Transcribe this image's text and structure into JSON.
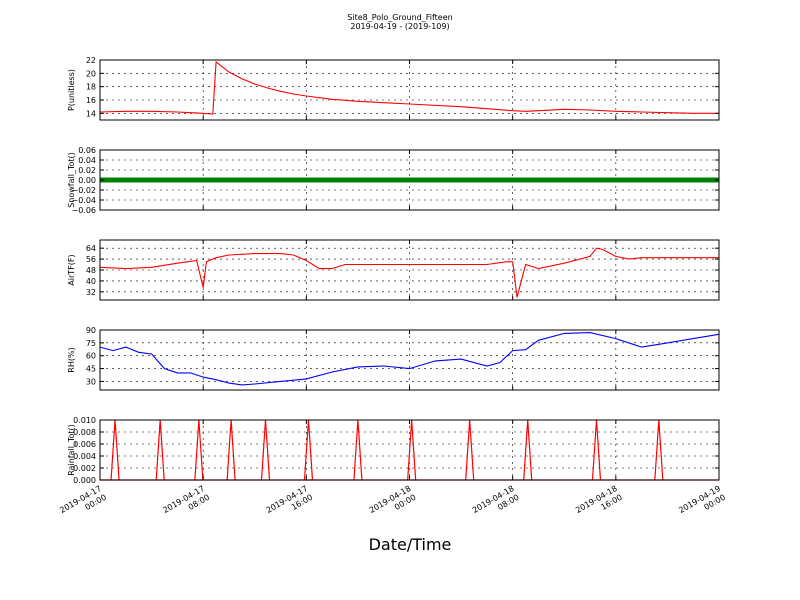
{
  "figure": {
    "title": "Site8_Polo_Ground_Fifteen",
    "subtitle": "2019-04-19 - (2019-109)",
    "xlabel": "Date/Time"
  },
  "chart_data": {
    "type": "line",
    "x_range": [
      "2019-04-17 00:00",
      "2019-04-19 00:00"
    ],
    "x_ticks": [
      "2019-04-17 00:00",
      "2019-04-17 08:00",
      "2019-04-17 16:00",
      "2019-04-18 00:00",
      "2019-04-18 08:00",
      "2019-04-18 16:00",
      "2019-04-19 00:00"
    ],
    "x_tick_labels": [
      [
        "2019-04-17",
        "00:00"
      ],
      [
        "2019-04-17",
        "08:00"
      ],
      [
        "2019-04-17",
        "16:00"
      ],
      [
        "2019-04-18",
        "00:00"
      ],
      [
        "2019-04-18",
        "08:00"
      ],
      [
        "2019-04-18",
        "16:00"
      ],
      [
        "2019-04-19",
        "00:00"
      ]
    ],
    "grid": true,
    "panels": [
      {
        "ylabel": "P(unitless)",
        "ylim": [
          13,
          22
        ],
        "yticks": [
          14,
          16,
          18,
          20,
          22
        ],
        "ytick_labels": [
          "14",
          "16",
          "18",
          "20",
          "22"
        ],
        "color": "#ff0000",
        "x": [
          "2019-04-17 00:00",
          "2019-04-17 02:00",
          "2019-04-17 04:00",
          "2019-04-17 06:00",
          "2019-04-17 07:00",
          "2019-04-17 08:00",
          "2019-04-17 08:45",
          "2019-04-17 09:00",
          "2019-04-17 10:00",
          "2019-04-17 11:00",
          "2019-04-17 12:00",
          "2019-04-17 13:00",
          "2019-04-17 14:00",
          "2019-04-17 15:00",
          "2019-04-17 16:00",
          "2019-04-17 18:00",
          "2019-04-17 20:00",
          "2019-04-17 22:00",
          "2019-04-18 00:00",
          "2019-04-18 04:00",
          "2019-04-18 06:00",
          "2019-04-18 08:00",
          "2019-04-18 09:00",
          "2019-04-18 10:00",
          "2019-04-18 12:00",
          "2019-04-18 14:00",
          "2019-04-18 16:00",
          "2019-04-18 18:00",
          "2019-04-18 20:00",
          "2019-04-18 22:00",
          "2019-04-19 00:00"
        ],
        "values": [
          14.2,
          14.3,
          14.3,
          14.2,
          14.1,
          14.0,
          13.9,
          21.7,
          20.2,
          19.2,
          18.4,
          17.8,
          17.3,
          16.9,
          16.6,
          16.1,
          15.8,
          15.6,
          15.4,
          15.0,
          14.7,
          14.4,
          14.3,
          14.4,
          14.6,
          14.5,
          14.3,
          14.2,
          14.1,
          14.0,
          14.0
        ]
      },
      {
        "ylabel": "Snowfall_Tot()",
        "ylim": [
          -0.06,
          0.06
        ],
        "yticks": [
          -0.06,
          -0.04,
          -0.02,
          0.0,
          0.02,
          0.04,
          0.06
        ],
        "ytick_labels": [
          "−0.06",
          "−0.04",
          "−0.02",
          "0.00",
          "0.02",
          "0.04",
          "0.06"
        ],
        "color": "#008000",
        "style": "markers",
        "x": [
          "2019-04-17 00:00",
          "2019-04-19 00:00"
        ],
        "values": [
          0.0,
          0.0
        ]
      },
      {
        "ylabel": "AirTF(F)",
        "ylim": [
          26,
          70
        ],
        "yticks": [
          32,
          40,
          48,
          56,
          64
        ],
        "ytick_labels": [
          "32",
          "40",
          "48",
          "56",
          "64"
        ],
        "color": "#ff0000",
        "x": [
          "2019-04-17 00:00",
          "2019-04-17 02:00",
          "2019-04-17 04:00",
          "2019-04-17 06:00",
          "2019-04-17 07:30",
          "2019-04-17 08:00",
          "2019-04-17 08:15",
          "2019-04-17 09:00",
          "2019-04-17 10:00",
          "2019-04-17 12:00",
          "2019-04-17 14:00",
          "2019-04-17 15:00",
          "2019-04-17 16:00",
          "2019-04-17 17:00",
          "2019-04-17 18:00",
          "2019-04-17 19:00",
          "2019-04-17 20:00",
          "2019-04-17 22:00",
          "2019-04-18 00:00",
          "2019-04-18 04:00",
          "2019-04-18 06:00",
          "2019-04-18 07:30",
          "2019-04-18 08:00",
          "2019-04-18 08:20",
          "2019-04-18 09:00",
          "2019-04-18 10:00",
          "2019-04-18 12:00",
          "2019-04-18 14:00",
          "2019-04-18 14:30",
          "2019-04-18 15:00",
          "2019-04-18 16:00",
          "2019-04-18 17:00",
          "2019-04-18 18:00",
          "2019-04-18 20:00",
          "2019-04-18 22:00",
          "2019-04-19 00:00"
        ],
        "values": [
          50,
          49,
          50,
          53,
          55,
          35,
          54,
          57,
          59,
          60,
          60,
          59,
          55,
          49,
          49,
          52,
          52,
          52,
          52,
          52,
          52,
          54,
          54,
          28,
          52,
          49,
          53,
          58,
          64,
          63,
          58,
          56,
          57,
          57,
          57,
          57
        ]
      },
      {
        "ylabel": "RH(%)",
        "ylim": [
          20,
          90
        ],
        "yticks": [
          30,
          45,
          60,
          75,
          90
        ],
        "ytick_labels": [
          "30",
          "45",
          "60",
          "75",
          "90"
        ],
        "color": "#0000ff",
        "x": [
          "2019-04-17 00:00",
          "2019-04-17 01:00",
          "2019-04-17 02:00",
          "2019-04-17 03:00",
          "2019-04-17 04:00",
          "2019-04-17 05:00",
          "2019-04-17 06:00",
          "2019-04-17 07:00",
          "2019-04-17 08:00",
          "2019-04-17 09:00",
          "2019-04-17 10:00",
          "2019-04-17 11:00",
          "2019-04-17 12:00",
          "2019-04-17 14:00",
          "2019-04-17 16:00",
          "2019-04-17 18:00",
          "2019-04-17 20:00",
          "2019-04-17 22:00",
          "2019-04-18 00:00",
          "2019-04-18 02:00",
          "2019-04-18 04:00",
          "2019-04-18 06:00",
          "2019-04-18 07:00",
          "2019-04-18 08:00",
          "2019-04-18 09:00",
          "2019-04-18 10:00",
          "2019-04-18 12:00",
          "2019-04-18 14:00",
          "2019-04-18 16:00",
          "2019-04-18 18:00",
          "2019-04-18 20:00",
          "2019-04-18 22:00",
          "2019-04-19 00:00"
        ],
        "values": [
          70,
          66,
          70,
          64,
          62,
          45,
          40,
          40,
          35,
          32,
          28,
          26,
          27,
          30,
          33,
          41,
          47,
          48,
          45,
          54,
          56,
          48,
          52,
          66,
          67,
          78,
          86,
          87,
          80,
          70,
          75,
          80,
          85
        ]
      },
      {
        "ylabel": "Rainfall_Tot()",
        "ylim": [
          0,
          0.01
        ],
        "yticks": [
          0.0,
          0.002,
          0.004,
          0.006,
          0.008,
          0.01
        ],
        "ytick_labels": [
          "0.000",
          "0.002",
          "0.004",
          "0.006",
          "0.008",
          "0.010"
        ],
        "color": "#ff0000",
        "x": [
          "2019-04-17 01:10",
          "2019-04-17 04:40",
          "2019-04-17 07:40",
          "2019-04-17 10:10",
          "2019-04-17 12:50",
          "2019-04-17 16:10",
          "2019-04-17 20:00",
          "2019-04-18 00:10",
          "2019-04-18 04:40",
          "2019-04-18 09:10",
          "2019-04-18 14:30",
          "2019-04-18 19:20"
        ],
        "values": [
          0.01,
          0.01,
          0.01,
          0.01,
          0.01,
          0.01,
          0.01,
          0.01,
          0.01,
          0.01,
          0.01,
          0.01
        ]
      }
    ]
  }
}
